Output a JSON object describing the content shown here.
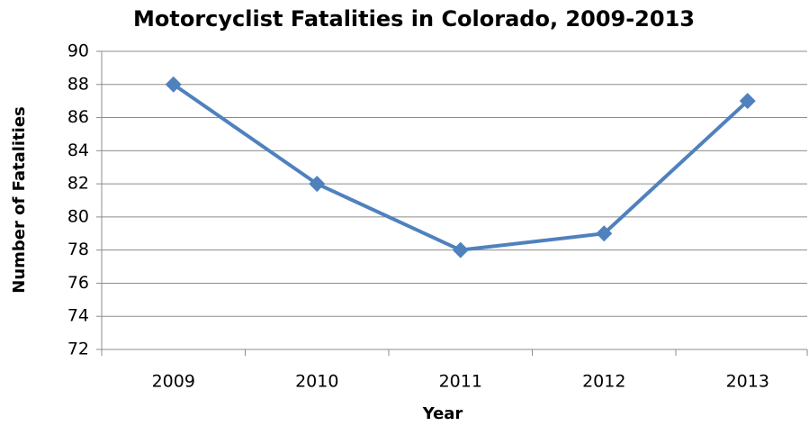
{
  "chart_data": {
    "type": "line",
    "title": "Motorcyclist Fatalities in Colorado, 2009-2013",
    "x_label": "Year",
    "y_label": "Number of Fatalities",
    "categories": [
      "2009",
      "2010",
      "2011",
      "2012",
      "2013"
    ],
    "values": [
      88,
      82,
      78,
      79,
      87
    ],
    "color": "#4f81bd",
    "ylim": [
      72,
      90
    ],
    "yticks": [
      72,
      74,
      76,
      78,
      80,
      82,
      84,
      86,
      88,
      90
    ],
    "grid": true
  }
}
